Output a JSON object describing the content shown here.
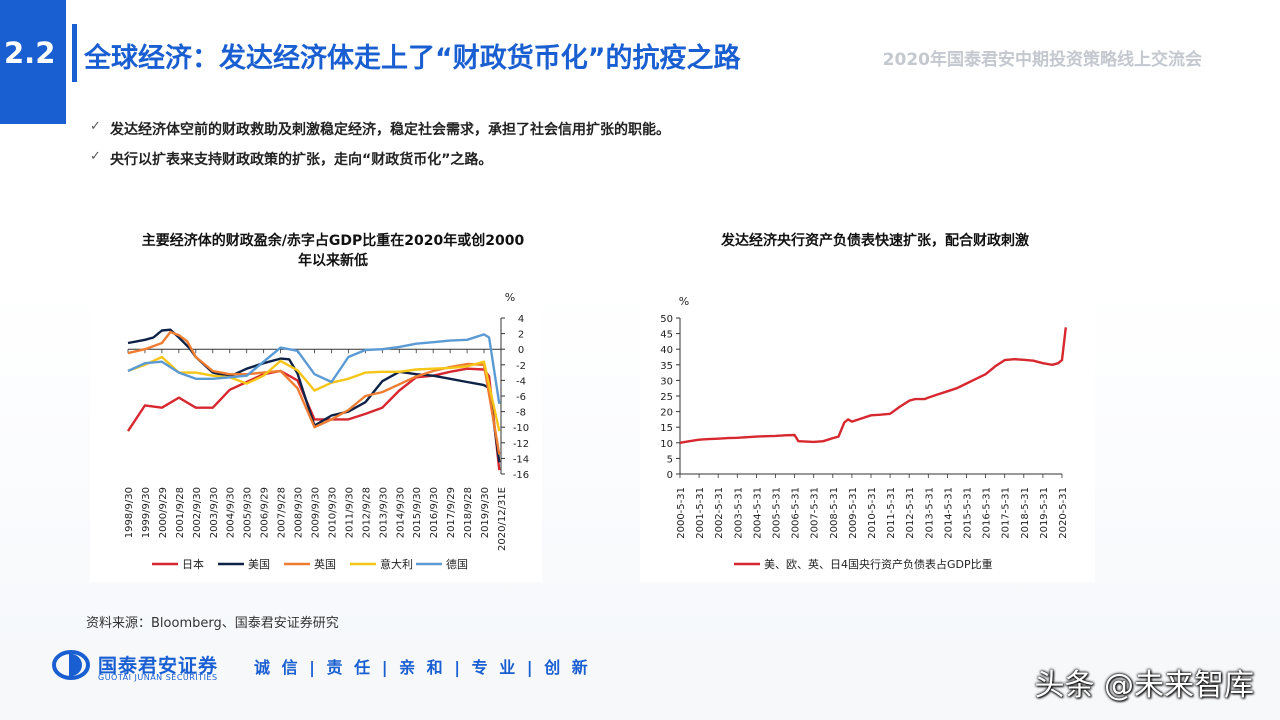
{
  "header": {
    "section_number": "2.2",
    "title": "全球经济：发达经济体走上了“财政货币化”的抗疫之路",
    "event": "2020年国泰君安中期投资策略线上交流会"
  },
  "bullets": [
    "发达经济体空前的财政救助及刺激稳定经济，稳定社会需求，承担了社会信用扩张的职能。",
    "央行以扩表来支持财政政策的扩张，走向“财政货币化”之路。"
  ],
  "check_icon": "check-icon",
  "chart_data": [
    {
      "type": "line",
      "title": "主要经济体的财政盈余/赤字占GDP比重在2020年或创2000年以来新低",
      "ylabel": "%",
      "ylim": [
        -16,
        4
      ],
      "yticks": [
        4,
        2,
        0,
        -2,
        -4,
        -6,
        -8,
        -10,
        -12,
        -14,
        -16
      ],
      "categories": [
        "1998/9/30",
        "1999/9/30",
        "2000/9/29",
        "2001/9/28",
        "2002/9/30",
        "2003/9/30",
        "2004/9/30",
        "2005/9/30",
        "2006/9/29",
        "2007/9/28",
        "2008/9/30",
        "2009/9/30",
        "2010/9/30",
        "2011/9/30",
        "2012/9/28",
        "2013/9/30",
        "2014/9/30",
        "2015/9/30",
        "2016/9/30",
        "2017/9/29",
        "2018/9/28",
        "2019/9/30",
        "2020/12/31E"
      ],
      "legend_position": "bottom",
      "series": [
        {
          "name": "日本",
          "color": "#d7272f",
          "x": [
            0,
            1,
            2,
            3,
            4,
            5,
            6,
            7,
            8,
            9,
            10,
            11,
            12,
            13,
            14,
            15,
            16,
            17,
            18,
            19,
            20,
            21,
            21.3,
            21.9
          ],
          "values": [
            -10.5,
            -7.2,
            -7.5,
            -6.2,
            -7.5,
            -7.5,
            -5.2,
            -4.2,
            -3.2,
            -2.8,
            -4.0,
            -9.0,
            -9.0,
            -9.0,
            -8.3,
            -7.5,
            -5.3,
            -3.6,
            -3.4,
            -2.9,
            -2.5,
            -2.6,
            -3.5,
            -15.5
          ]
        },
        {
          "name": "美国",
          "color": "#0e2247",
          "x": [
            0,
            0.5,
            1,
            1.5,
            2,
            2.5,
            3,
            3.6,
            4,
            5,
            6,
            7,
            8,
            9,
            9.5,
            10,
            10.5,
            11,
            12,
            13,
            14,
            15,
            16,
            17,
            18,
            19,
            20,
            21,
            21.3,
            21.9
          ],
          "values": [
            0.8,
            1.0,
            1.2,
            1.5,
            2.4,
            2.5,
            1.5,
            0.2,
            -1.0,
            -3.0,
            -3.5,
            -2.5,
            -1.8,
            -1.2,
            -1.3,
            -3.1,
            -6.5,
            -9.8,
            -8.5,
            -8.0,
            -6.8,
            -4.1,
            -2.9,
            -3.2,
            -3.4,
            -3.8,
            -4.2,
            -4.6,
            -5.0,
            -14.5
          ]
        },
        {
          "name": "英国",
          "color": "#ee7d31",
          "x": [
            0,
            1,
            2,
            2.5,
            3,
            3.5,
            4,
            5,
            6,
            7,
            8,
            9,
            10,
            11,
            12,
            13,
            14,
            15,
            16,
            17,
            18,
            19,
            20,
            21,
            21.9
          ],
          "values": [
            -0.5,
            0,
            0.8,
            2.2,
            1.8,
            1.0,
            -1.0,
            -2.8,
            -3.2,
            -3.2,
            -3.0,
            -2.8,
            -5.0,
            -10.0,
            -9.0,
            -7.8,
            -6.0,
            -5.5,
            -4.5,
            -3.5,
            -2.8,
            -2.3,
            -1.9,
            -2.0,
            -13.5
          ]
        },
        {
          "name": "意大利",
          "color": "#f5c518",
          "x": [
            0,
            1,
            2,
            3,
            4,
            5,
            6,
            7,
            8,
            9,
            10,
            11,
            12,
            13,
            14,
            15,
            16,
            17,
            18,
            19,
            20,
            21,
            21.9
          ],
          "values": [
            -2.8,
            -2.0,
            -1.0,
            -3.0,
            -3.0,
            -3.4,
            -3.6,
            -4.4,
            -3.4,
            -1.5,
            -2.7,
            -5.3,
            -4.3,
            -3.8,
            -3.0,
            -2.9,
            -2.9,
            -2.6,
            -2.5,
            -2.4,
            -2.2,
            -1.6,
            -10.5
          ]
        },
        {
          "name": "德国",
          "color": "#5b9bd5",
          "x": [
            0,
            1,
            2,
            3,
            4,
            5,
            6,
            7,
            8,
            9,
            10,
            11,
            12,
            13,
            14,
            15,
            16,
            17,
            18,
            19,
            20,
            21,
            21.3,
            21.9
          ],
          "values": [
            -2.8,
            -1.8,
            -1.6,
            -3.0,
            -3.8,
            -3.8,
            -3.6,
            -3.4,
            -1.6,
            0.2,
            -0.2,
            -3.2,
            -4.2,
            -1.0,
            -0.1,
            0.0,
            0.3,
            0.7,
            0.9,
            1.1,
            1.2,
            1.9,
            1.5,
            -7.0
          ]
        }
      ]
    },
    {
      "type": "line",
      "title": "发达经济央行资产负债表快速扩张，配合财政刺激",
      "ylabel": "%",
      "ylim": [
        0,
        50
      ],
      "yticks": [
        50,
        45,
        40,
        35,
        30,
        25,
        20,
        15,
        10,
        5,
        0
      ],
      "categories": [
        "2000-5-31",
        "2001-5-31",
        "2002-5-31",
        "2003-5-31",
        "2004-5-31",
        "2005-5-31",
        "2006-5-31",
        "2007-5-31",
        "2008-5-31",
        "2009-5-31",
        "2010-5-31",
        "2011-5-31",
        "2012-5-31",
        "2013-5-31",
        "2014-5-31",
        "2015-5-31",
        "2016-5-31",
        "2017-5-31",
        "2018-5-31",
        "2019-5-31",
        "2020-5-31"
      ],
      "legend_position": "bottom",
      "series": [
        {
          "name": "美、欧、英、日4国央行资产负债表占GDP比重",
          "color": "#d7272f",
          "x": [
            0,
            0.5,
            1,
            1.5,
            2,
            2.5,
            3,
            3.5,
            4,
            4.5,
            5,
            5.5,
            6,
            6.2,
            6.6,
            7,
            7.5,
            8,
            8.3,
            8.6,
            8.8,
            9,
            9.5,
            10,
            10.5,
            11,
            11.5,
            12,
            12.3,
            12.8,
            13,
            13.5,
            14,
            14.5,
            15,
            15.5,
            16,
            16.5,
            17,
            17.5,
            18,
            18.5,
            19,
            19.5,
            19.8,
            20,
            20.2
          ],
          "values": [
            10,
            10.5,
            11,
            11.2,
            11.3,
            11.5,
            11.6,
            11.8,
            12,
            12.1,
            12.2,
            12.4,
            12.5,
            10.5,
            10.4,
            10.3,
            10.5,
            11.5,
            12,
            16.5,
            17.5,
            16.8,
            17.8,
            18.8,
            19,
            19.3,
            21.5,
            23.5,
            24,
            24,
            24.5,
            25.5,
            26.5,
            27.5,
            29,
            30.5,
            32,
            34.5,
            36.5,
            36.8,
            36.6,
            36.3,
            35.5,
            35,
            35.5,
            36.5,
            47
          ]
        }
      ]
    }
  ],
  "source_note": "资料来源：Bloomberg、国泰君安证券研究",
  "footer": {
    "logo_cn": "国泰君安证券",
    "logo_en": "GUOTAI JUNAN SECURITIES",
    "slogan": "诚 信 | 责 任 | 亲 和 | 专 业 | 创 新",
    "watermark": "头条 @未来智库"
  }
}
